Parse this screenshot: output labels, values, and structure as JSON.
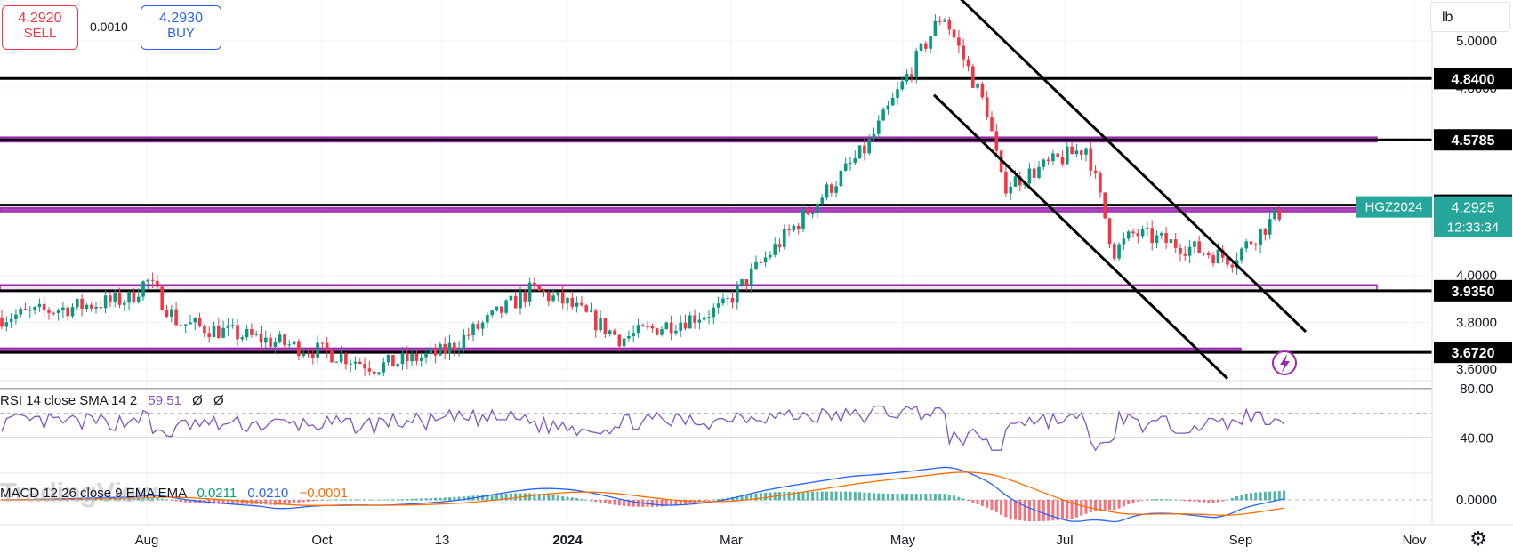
{
  "trade": {
    "sell_price": "4.2920",
    "sell_label": "SELL",
    "buy_price": "4.2930",
    "buy_label": "BUY",
    "spread": "0.0010"
  },
  "unit_label": "lb",
  "watermark": "TradingView",
  "colors": {
    "up": "#089981",
    "down": "#f23645",
    "zone": "#9c27b0",
    "zone_fill": "#e1bee7",
    "rsi": "#7e57c2",
    "macd": "#2962ff",
    "signal": "#ff6d00",
    "level_label_bg": "#000000",
    "ticker_bg": "#26a69a"
  },
  "icons": {
    "lightning": "lightning-icon",
    "settings": "gear-icon",
    "unit": "unit-selector"
  },
  "chart_data": {
    "type": "candlestick",
    "symbol": "HGZ2024",
    "last_price": "4.2925",
    "countdown": "12:33:34",
    "x_labels": [
      "Aug",
      "Oct",
      "13",
      "2024",
      "Mar",
      "May",
      "Jul",
      "Sep",
      "Nov"
    ],
    "y_ticks": [
      "5.0000",
      "4.8000",
      "4.0000",
      "3.8000",
      "3.6000"
    ],
    "ylim": [
      3.555,
      5.175
    ],
    "horizontal_levels": [
      {
        "label": "4.8400",
        "value": 4.84
      },
      {
        "label": "4.5785",
        "value": 4.5785
      },
      {
        "label": "4.3000",
        "value": 4.3
      },
      {
        "label": "3.9350",
        "value": 3.935
      },
      {
        "label": "3.6720",
        "value": 3.672
      }
    ],
    "support_zones": [
      {
        "from": 4.57,
        "to": 4.59
      },
      {
        "from": 4.272,
        "to": 4.288
      },
      {
        "from": 3.935,
        "to": 3.96
      },
      {
        "from": 3.672,
        "to": 3.69
      }
    ],
    "channel_lines": [
      {
        "from": [
          "May",
          5.18
        ],
        "to": [
          "Oct",
          3.76
        ]
      },
      {
        "from": [
          "May",
          4.77
        ],
        "to": [
          "Sep",
          3.56
        ]
      }
    ],
    "price_series": [
      [
        "Jul 2023",
        3.82
      ],
      [
        "Aug",
        3.9
      ],
      [
        "Aug",
        3.98
      ],
      [
        "Aug",
        3.8
      ],
      [
        "Oct",
        3.66
      ],
      [
        "Oct",
        3.61
      ],
      [
        "13",
        3.67
      ],
      [
        "2024",
        3.94
      ],
      [
        "2024",
        3.88
      ],
      [
        "2024",
        3.73
      ],
      [
        "Mar",
        3.86
      ],
      [
        "Mar",
        4.08
      ],
      [
        "May",
        4.55
      ],
      [
        "May",
        5.12
      ],
      [
        "May",
        4.7
      ],
      [
        "Jul",
        4.38
      ],
      [
        "Jul",
        4.55
      ],
      [
        "Jul",
        4.1
      ],
      [
        "Sep",
        4.18
      ],
      [
        "Sep",
        4.07
      ],
      [
        "Sep",
        4.29
      ]
    ],
    "rsi": {
      "label": "RSI 14 close SMA 14 2",
      "value": "59.51",
      "extra": [
        "Ø",
        "Ø"
      ],
      "ticks": [
        "80.00",
        "40.00"
      ],
      "ylim": [
        20,
        85
      ]
    },
    "macd": {
      "label": "MACD 12 26 close 9 EMA EMA",
      "values": [
        "0.0211",
        "0.0210",
        "−0.0001"
      ],
      "ticks": [
        "0.0000"
      ]
    }
  }
}
